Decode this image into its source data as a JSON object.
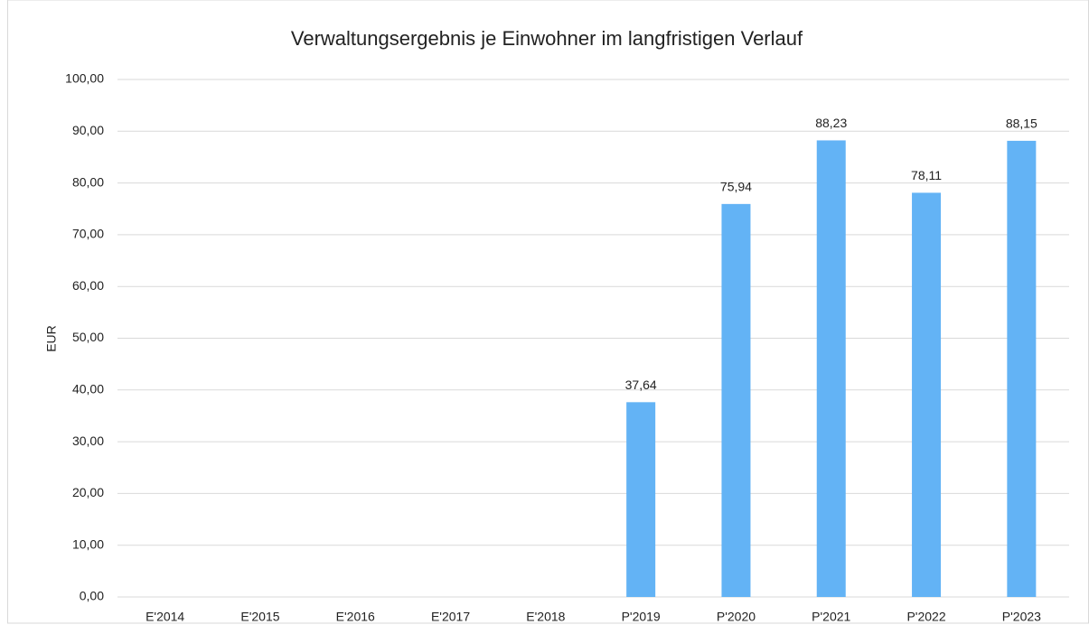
{
  "chart_data": {
    "type": "bar",
    "title": "Verwaltungsergebnis je Einwohner im langfristigen Verlauf",
    "y_label": "EUR",
    "categories": [
      "E'2014",
      "E'2015",
      "E'2016",
      "E'2017",
      "E'2018",
      "P'2019",
      "P'2020",
      "P'2021",
      "P'2022",
      "P'2023"
    ],
    "values": [
      null,
      null,
      null,
      null,
      null,
      37.64,
      75.94,
      88.23,
      78.11,
      88.15
    ],
    "value_labels": [
      null,
      null,
      null,
      null,
      null,
      "37,64",
      "75,94",
      "88,23",
      "78,11",
      "88,15"
    ],
    "color": "#63b3f5",
    "ylim": [
      0,
      100
    ],
    "yticks": [
      {
        "value": 0,
        "label": "0,00"
      },
      {
        "value": 10,
        "label": "10,00"
      },
      {
        "value": 20,
        "label": "20,00"
      },
      {
        "value": 30,
        "label": "30,00"
      },
      {
        "value": 40,
        "label": "40,00"
      },
      {
        "value": 50,
        "label": "50,00"
      },
      {
        "value": 60,
        "label": "60,00"
      },
      {
        "value": 70,
        "label": "70,00"
      },
      {
        "value": 80,
        "label": "80,00"
      },
      {
        "value": 90,
        "label": "90,00"
      },
      {
        "value": 100,
        "label": "100,00"
      }
    ],
    "grid": true
  }
}
